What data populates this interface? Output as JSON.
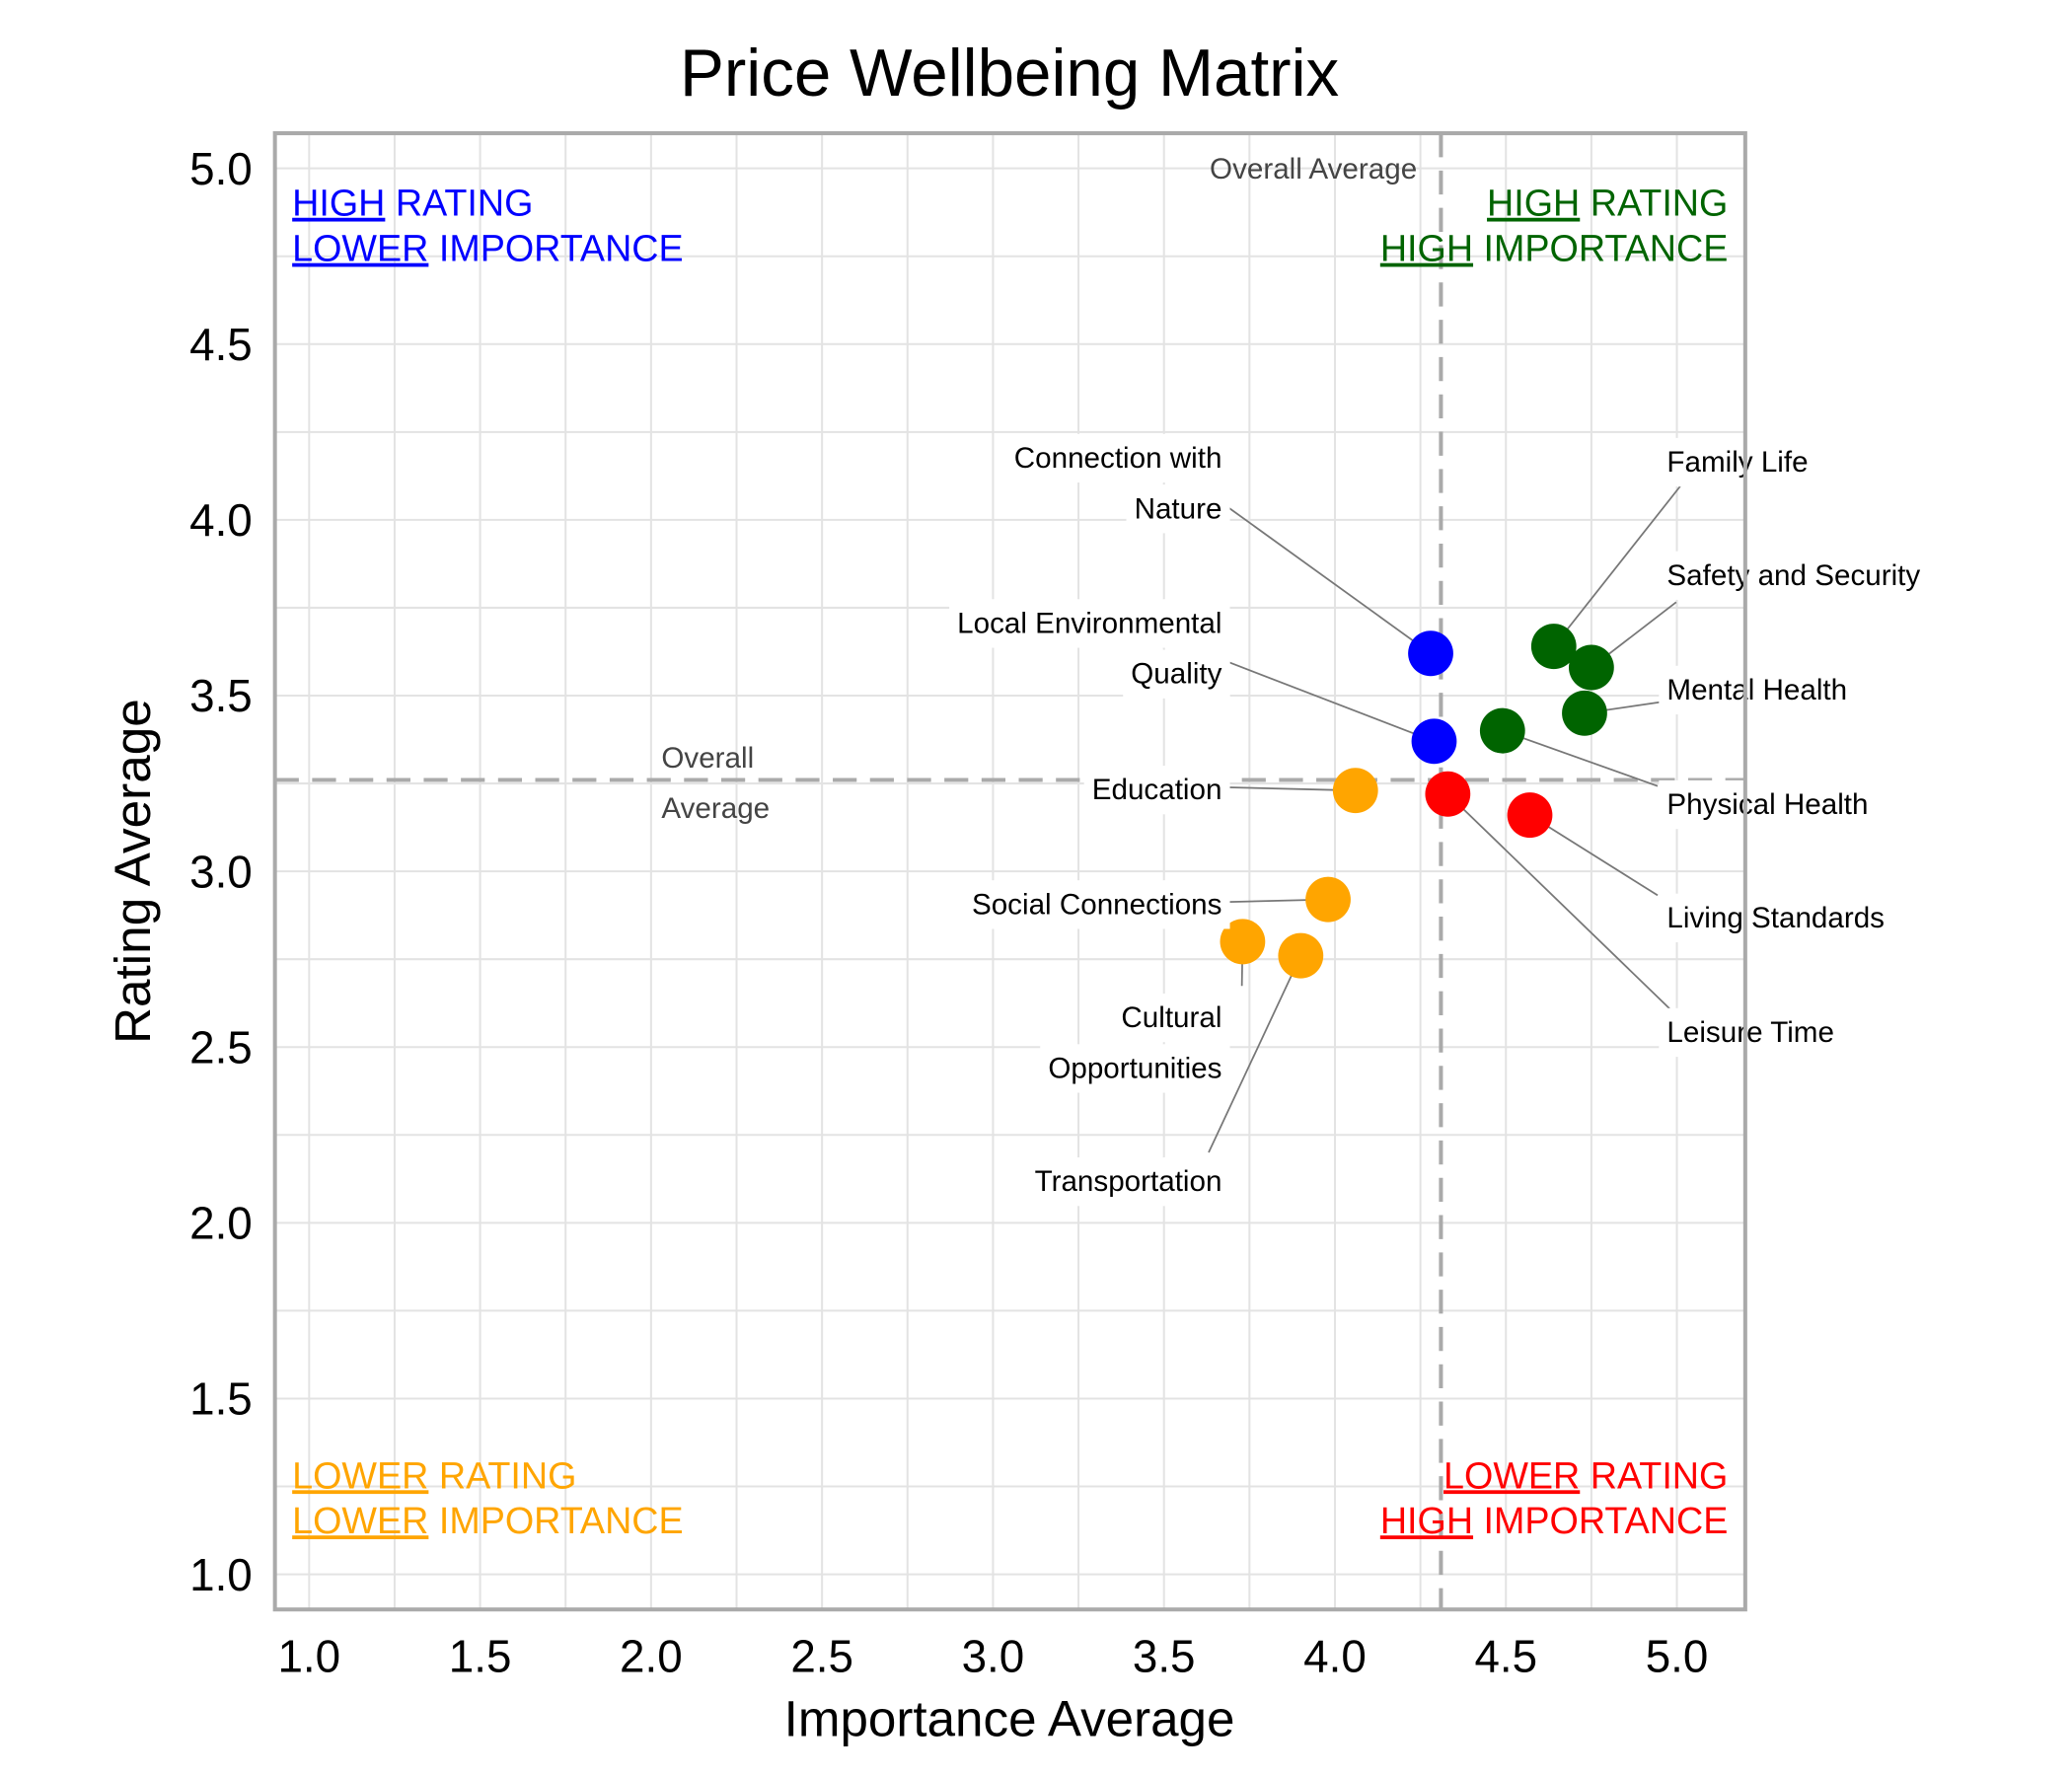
{
  "chart_data": {
    "type": "scatter",
    "title": "Price Wellbeing Matrix",
    "xlabel": "Importance Average",
    "ylabel": "Rating Average",
    "xlim": [
      0.9,
      5.2
    ],
    "ylim": [
      0.9,
      5.1
    ],
    "xticks": [
      "1.0",
      "1.5",
      "2.0",
      "2.5",
      "3.0",
      "3.5",
      "4.0",
      "4.5",
      "5.0"
    ],
    "yticks": [
      "1.0",
      "1.5",
      "2.0",
      "2.5",
      "3.0",
      "3.5",
      "4.0",
      "4.5",
      "5.0"
    ],
    "grid": true,
    "reference_lines": {
      "x_average": 4.31,
      "y_average": 3.26,
      "x_average_label": "Overall Average",
      "y_average_label": [
        "Overall",
        "Average"
      ]
    },
    "colors": {
      "high_rating_lower_importance": "#0000ff",
      "high_rating_high_importance": "#006400",
      "lower_rating_lower_importance": "#ffa500",
      "lower_rating_high_importance": "#ff0000"
    },
    "quadrant_labels": [
      {
        "key": "high_rating_lower_importance",
        "color": "#0000ff",
        "lines": [
          {
            "u": "HIGH",
            "rest": " RATING"
          },
          {
            "u": "LOWER",
            "rest": " IMPORTANCE"
          }
        ]
      },
      {
        "key": "high_rating_high_importance",
        "color": "#006400",
        "lines": [
          {
            "u": "HIGH",
            "rest": " RATING"
          },
          {
            "u": "HIGH",
            "rest": " IMPORTANCE"
          }
        ]
      },
      {
        "key": "lower_rating_lower_importance",
        "color": "#ffa500",
        "lines": [
          {
            "u": "LOWER",
            "rest": " RATING"
          },
          {
            "u": "LOWER",
            "rest": " IMPORTANCE"
          }
        ]
      },
      {
        "key": "lower_rating_high_importance",
        "color": "#ff0000",
        "lines": [
          {
            "u": "LOWER",
            "rest": " RATING"
          },
          {
            "u": "HIGH",
            "rest": " IMPORTANCE"
          }
        ]
      }
    ],
    "points": [
      {
        "name": [
          "Connection with",
          "Nature"
        ],
        "x": 4.28,
        "y": 3.62,
        "color": "#0000ff"
      },
      {
        "name": [
          "Local Environmental",
          "Quality"
        ],
        "x": 4.29,
        "y": 3.37,
        "color": "#0000ff"
      },
      {
        "name": [
          "Family Life"
        ],
        "x": 4.64,
        "y": 3.64,
        "color": "#006400"
      },
      {
        "name": [
          "Safety and Security"
        ],
        "x": 4.75,
        "y": 3.58,
        "color": "#006400"
      },
      {
        "name": [
          "Mental Health"
        ],
        "x": 4.73,
        "y": 3.45,
        "color": "#006400"
      },
      {
        "name": [
          "Physical Health"
        ],
        "x": 4.49,
        "y": 3.4,
        "color": "#006400"
      },
      {
        "name": [
          "Education"
        ],
        "x": 4.06,
        "y": 3.23,
        "color": "#ffa500"
      },
      {
        "name": [
          "Leisure Time"
        ],
        "x": 4.33,
        "y": 3.22,
        "color": "#ff0000"
      },
      {
        "name": [
          "Living Standards"
        ],
        "x": 4.57,
        "y": 3.16,
        "color": "#ff0000"
      },
      {
        "name": [
          "Social Connections"
        ],
        "x": 3.98,
        "y": 2.92,
        "color": "#ffa500"
      },
      {
        "name": [
          "Cultural",
          "Opportunities"
        ],
        "x": 3.73,
        "y": 2.8,
        "color": "#ffa500"
      },
      {
        "name": [
          "Transportation"
        ],
        "x": 3.9,
        "y": 2.76,
        "color": "#ffa500"
      }
    ]
  }
}
